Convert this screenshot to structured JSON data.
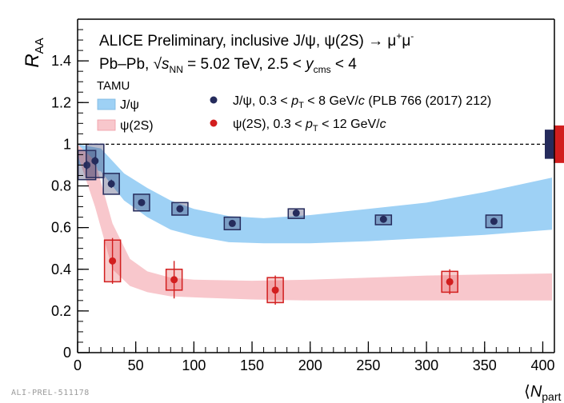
{
  "chart_data": {
    "type": "scatter",
    "ylabel": "R_AA",
    "xlabel": "⟨N_part⟩",
    "xlim": [
      0,
      410
    ],
    "ylim": [
      0,
      1.6
    ],
    "xticks": [
      0,
      50,
      100,
      150,
      200,
      250,
      300,
      350,
      400
    ],
    "yticks": [
      0,
      0.2,
      0.4,
      0.6,
      0.8,
      1,
      1.2,
      1.4
    ],
    "reference_line": 1.0,
    "annotations": {
      "line1": "ALICE Preliminary, inclusive J/ψ, ψ(2S) → μ⁺μ⁻",
      "line2": "Pb–Pb, √sNN = 5.02 TeV, 2.5 < ycms < 4",
      "model_header": "TAMU"
    },
    "legend": {
      "bands": [
        "J/ψ",
        "ψ(2S)"
      ],
      "points": [
        "J/ψ, 0.3 < pT < 8 GeV/c (PLB 766 (2017) 212)",
        "ψ(2S), 0.3 < pT < 12 GeV/c"
      ]
    },
    "series": [
      {
        "name": "J/ψ, 0.3 < pT < 8 GeV/c (PLB 766 (2017) 212)",
        "color": "#252b5c",
        "x": [
          8,
          15,
          29,
          55,
          88,
          133,
          188,
          263,
          358
        ],
        "y": [
          0.9,
          0.92,
          0.81,
          0.72,
          0.69,
          0.62,
          0.67,
          0.64,
          0.63
        ],
        "sys": [
          0.07,
          0.08,
          0.05,
          0.04,
          0.03,
          0.03,
          0.02,
          0.02,
          0.03
        ],
        "stat": [
          0.02,
          0.02,
          0.02,
          0.01,
          0.01,
          0.01,
          0.01,
          0.01,
          0.01
        ]
      },
      {
        "name": "ψ(2S), 0.3 < pT < 12 GeV/c",
        "color": "#d21e1e",
        "x": [
          30,
          83,
          170,
          320
        ],
        "y": [
          0.44,
          0.35,
          0.3,
          0.34
        ],
        "sys": [
          0.1,
          0.05,
          0.06,
          0.05
        ],
        "stat": [
          0.11,
          0.09,
          0.07,
          0.06
        ]
      }
    ],
    "bands": [
      {
        "name": "J/ψ",
        "color": "#9ed1f5",
        "x": [
          0,
          20,
          40,
          60,
          80,
          100,
          130,
          160,
          200,
          250,
          300,
          350,
          408
        ],
        "lower": [
          0.9,
          0.87,
          0.73,
          0.65,
          0.59,
          0.56,
          0.53,
          0.525,
          0.525,
          0.535,
          0.55,
          0.565,
          0.59
        ],
        "upper": [
          1.0,
          0.98,
          0.86,
          0.79,
          0.73,
          0.69,
          0.655,
          0.645,
          0.66,
          0.69,
          0.72,
          0.77,
          0.84
        ]
      },
      {
        "name": "ψ(2S)",
        "color": "#f8c7cc",
        "x": [
          0,
          15,
          30,
          45,
          60,
          80,
          100,
          150,
          200,
          250,
          300,
          350,
          408
        ],
        "lower": [
          0.95,
          0.7,
          0.4,
          0.32,
          0.29,
          0.27,
          0.265,
          0.255,
          0.25,
          0.25,
          0.25,
          0.25,
          0.25
        ],
        "upper": [
          1.0,
          0.92,
          0.62,
          0.45,
          0.39,
          0.36,
          0.35,
          0.345,
          0.35,
          0.36,
          0.37,
          0.375,
          0.38
        ]
      }
    ],
    "global_uncertainty": [
      {
        "name": "J/ψ",
        "color": "#252b5c",
        "y": 1.0,
        "half_height": 0.07
      },
      {
        "name": "ψ(2S)",
        "color": "#d21e1e",
        "y": 1.0,
        "half_height": 0.09
      }
    ]
  },
  "watermark": "ALI-PREL-511178"
}
